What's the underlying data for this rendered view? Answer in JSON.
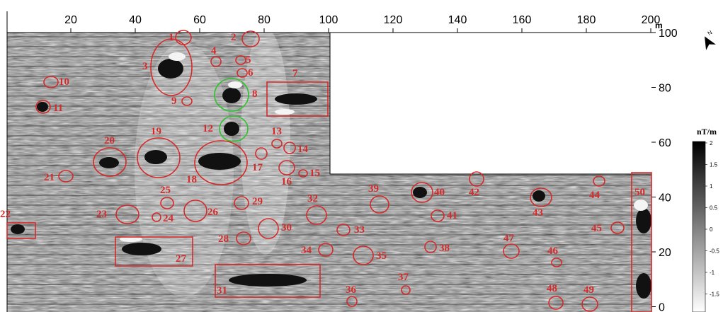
{
  "map": {
    "x_axis_ticks": [
      "20",
      "40",
      "60",
      "80",
      "100",
      "120",
      "140",
      "160",
      "180",
      "200"
    ],
    "x_axis_unit": "m",
    "y_axis_ticks": [
      "100",
      "80",
      "60",
      "40",
      "20",
      "0"
    ],
    "anomaly_labels": [
      "1",
      "2",
      "3",
      "4",
      "5",
      "6",
      "7",
      "8",
      "9",
      "10",
      "11",
      "12",
      "13",
      "14",
      "15",
      "16",
      "17",
      "18",
      "19",
      "20",
      "21",
      "22",
      "23",
      "24",
      "25",
      "26",
      "27",
      "28",
      "29",
      "30",
      "31",
      "32",
      "33",
      "34",
      "35",
      "36",
      "37",
      "38",
      "39",
      "40",
      "41",
      "42",
      "43",
      "44",
      "45",
      "46",
      "47",
      "48",
      "49",
      "50"
    ],
    "north_arrow_label": "N",
    "colors": {
      "marker": "#d42a2a",
      "highlight_marker": "#2ec22e",
      "background": "#8a8a8a"
    }
  },
  "legend": {
    "title": "nT/m",
    "ticks": [
      "2",
      "1.5",
      "1",
      "0.5",
      "0",
      "-0.5",
      "-1",
      "-1.5"
    ],
    "color_low": "#ffffff",
    "color_high": "#000000"
  }
}
